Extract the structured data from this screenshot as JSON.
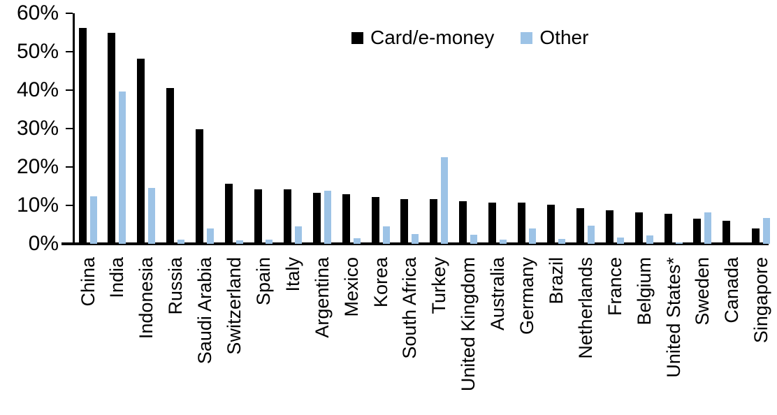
{
  "chart_data": {
    "type": "bar",
    "title": "",
    "xlabel": "",
    "ylabel": "",
    "ylim": [
      0,
      60
    ],
    "grid": false,
    "legend_position": "top-center",
    "background_color": "#ffffff",
    "axis_color": "#000000",
    "yticks": [
      "0%",
      "10%",
      "20%",
      "30%",
      "40%",
      "50%",
      "60%"
    ],
    "ytick_values": [
      0,
      10,
      20,
      30,
      40,
      50,
      60
    ],
    "categories": [
      "China",
      "India",
      "Indonesia",
      "Russia",
      "Saudi Arabia",
      "Switzerland",
      "Spain",
      "Italy",
      "Argentina",
      "Mexico",
      "Korea",
      "South Africa",
      "Turkey",
      "United Kingdom",
      "Australia",
      "Germany",
      "Brazil",
      "Netherlands",
      "France",
      "Belgium",
      "United States*",
      "Sweden",
      "Canada",
      "Singapore"
    ],
    "series": [
      {
        "name": "Card/e-money",
        "color": "#000000",
        "values": [
          56.2,
          54.9,
          48.2,
          40.6,
          29.9,
          15.6,
          14.2,
          14.1,
          13.3,
          12.9,
          12.2,
          11.7,
          11.6,
          11.1,
          10.8,
          10.7,
          10.1,
          9.2,
          8.7,
          8.2,
          7.9,
          6.6,
          6.0,
          4.0
        ]
      },
      {
        "name": "Other",
        "color": "#9DC3E6",
        "values": [
          12.3,
          39.7,
          14.6,
          1.1,
          4.0,
          0.9,
          1.1,
          4.6,
          13.8,
          1.5,
          4.6,
          2.6,
          22.6,
          2.4,
          1.1,
          4.0,
          1.2,
          4.8,
          1.6,
          2.1,
          0.4,
          8.1,
          0,
          6.8
        ]
      }
    ]
  }
}
